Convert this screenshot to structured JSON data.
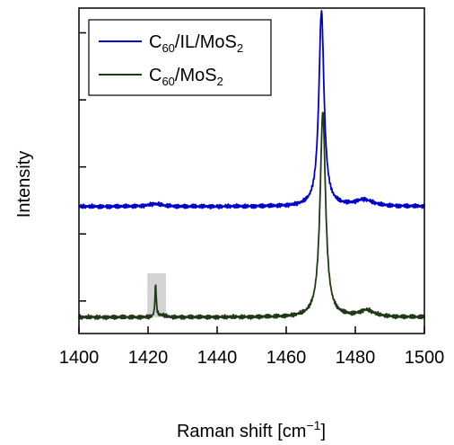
{
  "chart_data": {
    "type": "line",
    "xlabel": "Raman shift [cm",
    "xlabel_sup": "−1",
    "xlabel_end": "]",
    "ylabel": "Intensity",
    "xlim": [
      1400,
      1500
    ],
    "ylim": [
      0,
      1
    ],
    "x_ticks": [
      "1400",
      "1420",
      "1440",
      "1460",
      "1480",
      "1500"
    ],
    "x_tick_values": [
      1400,
      1420,
      1440,
      1460,
      1480,
      1500
    ],
    "y_ticks_unlabeled": [
      0.1,
      0.306,
      0.512,
      0.718,
      0.924
    ],
    "grid": false,
    "legend": {
      "position": "top-left",
      "entries": [
        {
          "base": "C",
          "sub": "60",
          "rest": "/IL/MoS",
          "sub2": "2"
        },
        {
          "base": "C",
          "sub": "60",
          "rest": "/MoS",
          "sub2": "2"
        }
      ]
    },
    "highlight": {
      "x_range": [
        1419.8,
        1425.2
      ],
      "y_range": [
        0.05,
        0.185
      ],
      "color": "#d3d3d3"
    },
    "series": [
      {
        "color": "#0000cc",
        "baseline": 0.39,
        "peaks": [
          {
            "center": 1470.2,
            "height": 0.6,
            "width": 0.9
          },
          {
            "center": 1482.5,
            "height": 0.02,
            "width": 3.0
          },
          {
            "center": 1422.0,
            "height": 0.008,
            "width": 2.5
          }
        ]
      },
      {
        "color": "#1f3a16",
        "baseline": 0.05,
        "peaks": [
          {
            "center": 1470.6,
            "height": 0.63,
            "width": 0.95
          },
          {
            "center": 1422.2,
            "height": 0.1,
            "width": 0.22
          },
          {
            "center": 1483.3,
            "height": 0.02,
            "width": 2.5
          },
          {
            "center": 1424.0,
            "height": 0.006,
            "width": 1.2
          }
        ]
      }
    ]
  }
}
